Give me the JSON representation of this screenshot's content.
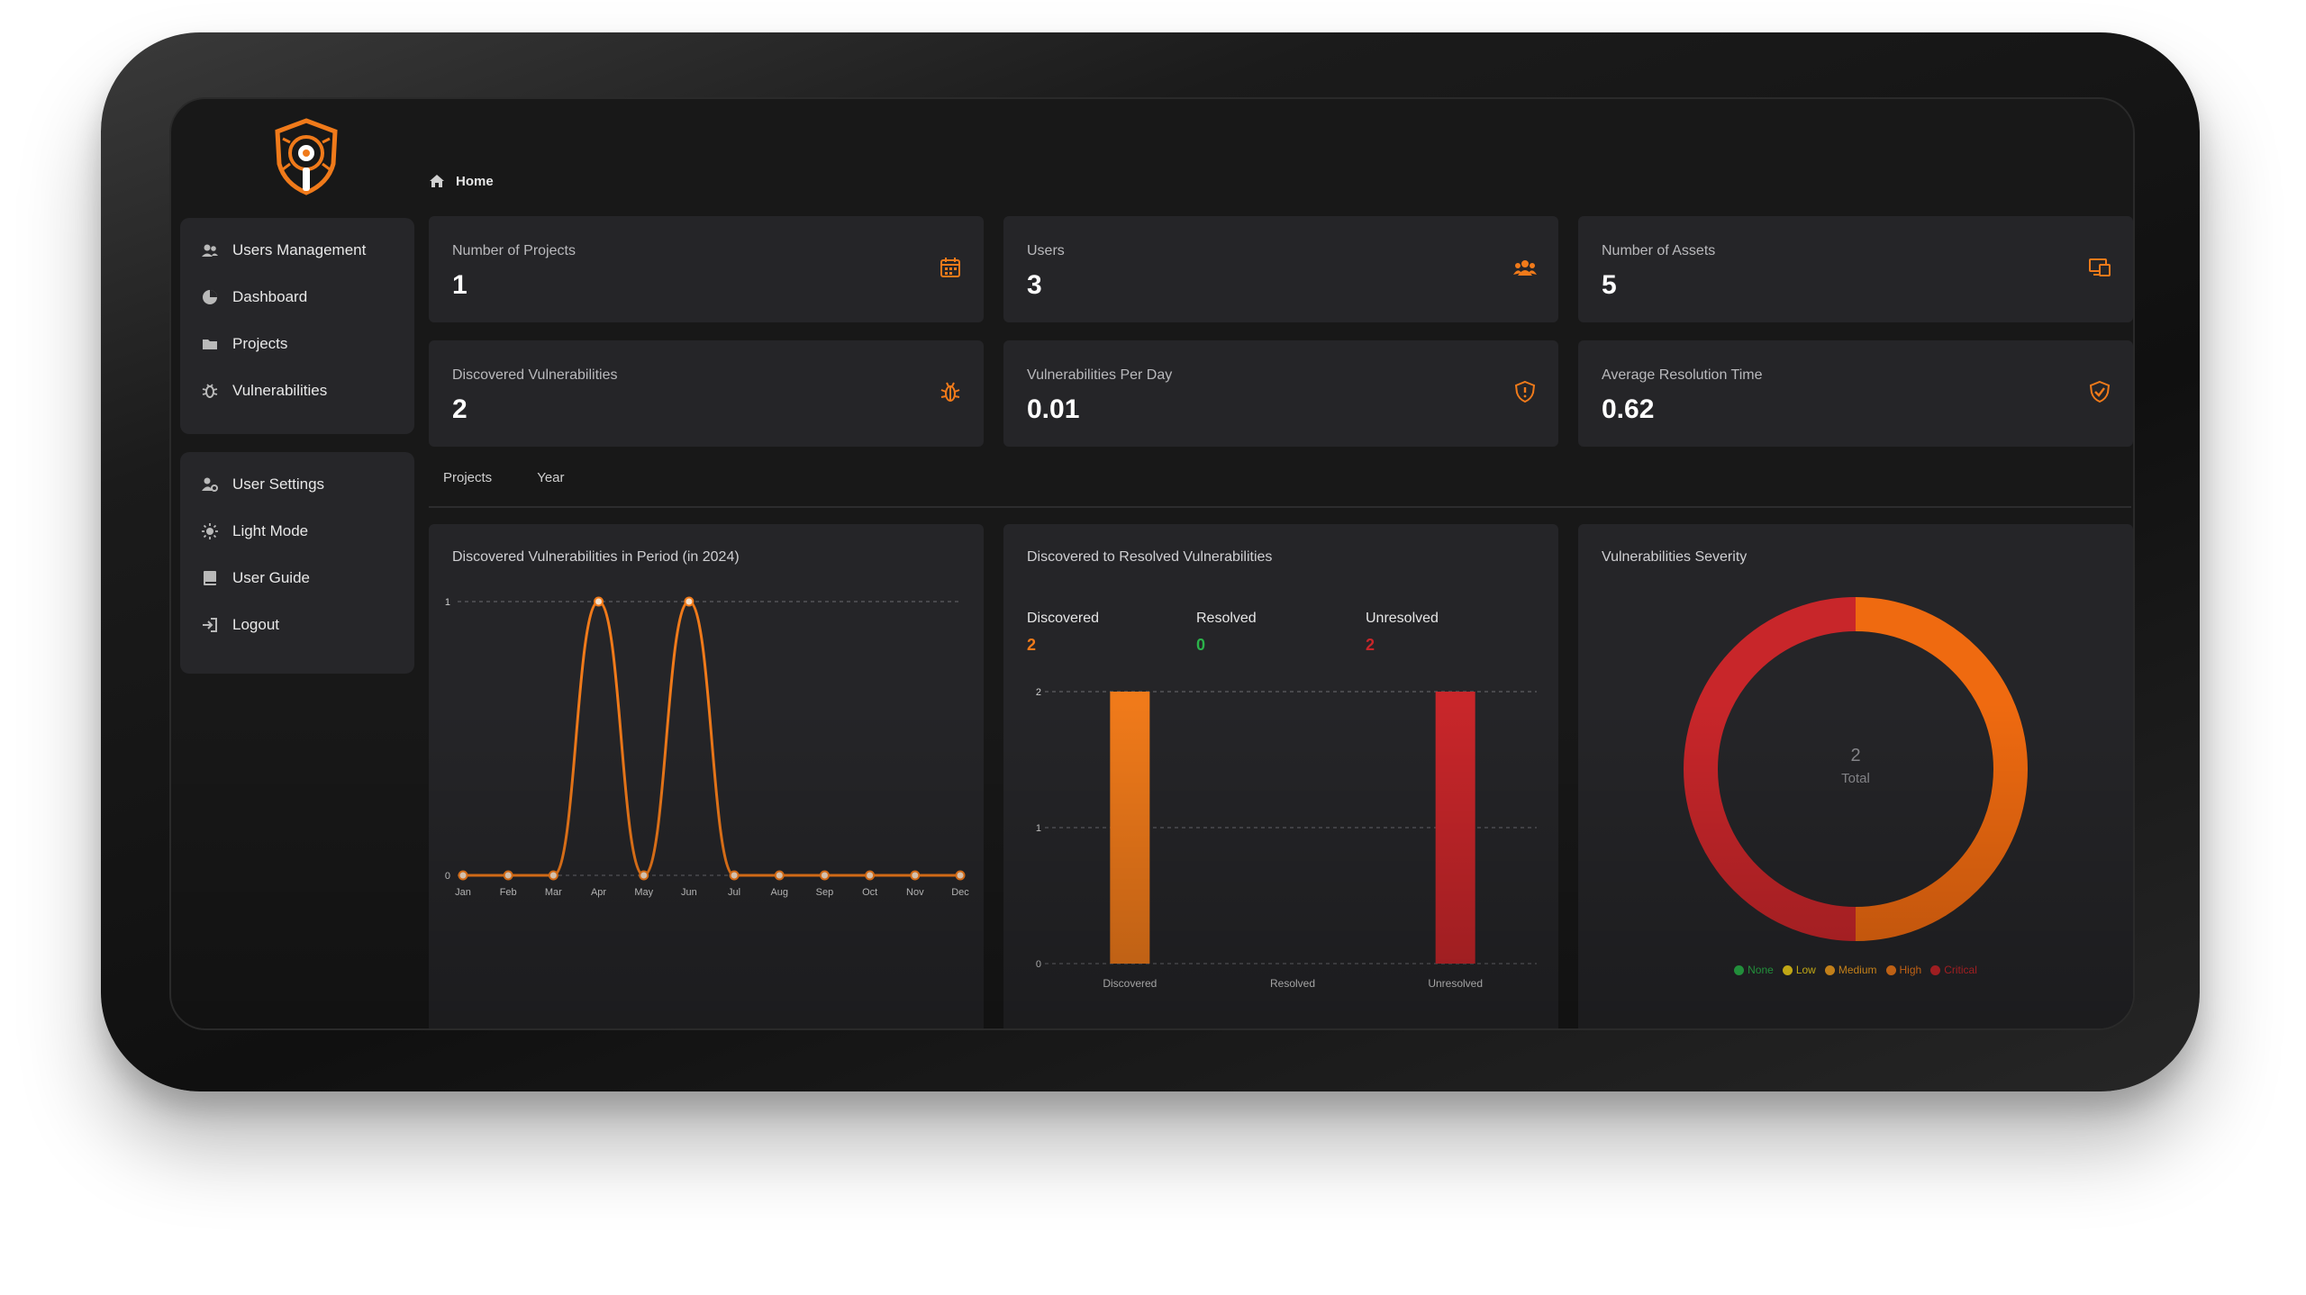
{
  "breadcrumb": {
    "label": "Home"
  },
  "sidebar": {
    "main": [
      {
        "label": "Users Management",
        "icon": "users-icon"
      },
      {
        "label": "Dashboard",
        "icon": "pie-icon"
      },
      {
        "label": "Projects",
        "icon": "folder-icon"
      },
      {
        "label": "Vulnerabilities",
        "icon": "bug-icon"
      }
    ],
    "settings": [
      {
        "label": "User Settings",
        "icon": "user-gear-icon"
      },
      {
        "label": "Light Mode",
        "icon": "sun-icon"
      },
      {
        "label": "User Guide",
        "icon": "book-icon"
      },
      {
        "label": "Logout",
        "icon": "logout-icon"
      }
    ]
  },
  "stats": [
    {
      "label": "Number of Projects",
      "value": "1",
      "icon": "calendar-icon"
    },
    {
      "label": "Users",
      "value": "3",
      "icon": "users-group-icon"
    },
    {
      "label": "Number of Assets",
      "value": "5",
      "icon": "assets-icon"
    },
    {
      "label": "Discovered Vulnerabilities",
      "value": "2",
      "icon": "bug-icon"
    },
    {
      "label": "Vulnerabilities Per Day",
      "value": "0.01",
      "icon": "shield-icon"
    },
    {
      "label": "Average Resolution Time",
      "value": "0.62",
      "icon": "shield-check-icon"
    }
  ],
  "tabs": [
    "Projects",
    "Year"
  ],
  "colors": {
    "accent": "#f07a1a",
    "red": "#c8262a",
    "green": "#2bb34a",
    "card": "#252528"
  },
  "chart_data": [
    {
      "type": "line",
      "title": "Discovered Vulnerabilities in Period (in 2024)",
      "categories": [
        "Jan",
        "Feb",
        "Mar",
        "Apr",
        "May",
        "Jun",
        "Jul",
        "Aug",
        "Sep",
        "Oct",
        "Nov",
        "Dec"
      ],
      "values": [
        0,
        0,
        0,
        1,
        0,
        1,
        0,
        0,
        0,
        0,
        0,
        0
      ],
      "yticks": [
        "0",
        "1"
      ],
      "ylim": [
        0,
        1
      ],
      "grid": true,
      "color": "#f07a1a"
    },
    {
      "type": "bar",
      "title": "Discovered to Resolved Vulnerabilities",
      "summary": [
        {
          "label": "Discovered",
          "value": "2",
          "color": "#f07a1a"
        },
        {
          "label": "Resolved",
          "value": "0",
          "color": "#2bb34a"
        },
        {
          "label": "Unresolved",
          "value": "2",
          "color": "#c8262a"
        }
      ],
      "categories": [
        "Discovered",
        "Resolved",
        "Unresolved"
      ],
      "values": [
        2,
        0,
        2
      ],
      "bar_colors": [
        "#f07a1a",
        "#2bb34a",
        "#c8262a"
      ],
      "yticks": [
        "0",
        "1",
        "2"
      ],
      "ylim": [
        0,
        2
      ],
      "grid": true
    },
    {
      "type": "pie",
      "title": "Vulnerabilities Severity",
      "center_value": "2",
      "center_label": "Total",
      "legend": [
        {
          "label": "None",
          "color": "#2bb34a"
        },
        {
          "label": "Low",
          "color": "#f2d21b"
        },
        {
          "label": "Medium",
          "color": "#f4a020"
        },
        {
          "label": "High",
          "color": "#f07a1a"
        },
        {
          "label": "Critical",
          "color": "#c8262a"
        }
      ],
      "slices": [
        {
          "label": "High",
          "value": 1,
          "color": "#ef6a10"
        },
        {
          "label": "Critical",
          "value": 1,
          "color": "#c8262a"
        }
      ]
    }
  ]
}
